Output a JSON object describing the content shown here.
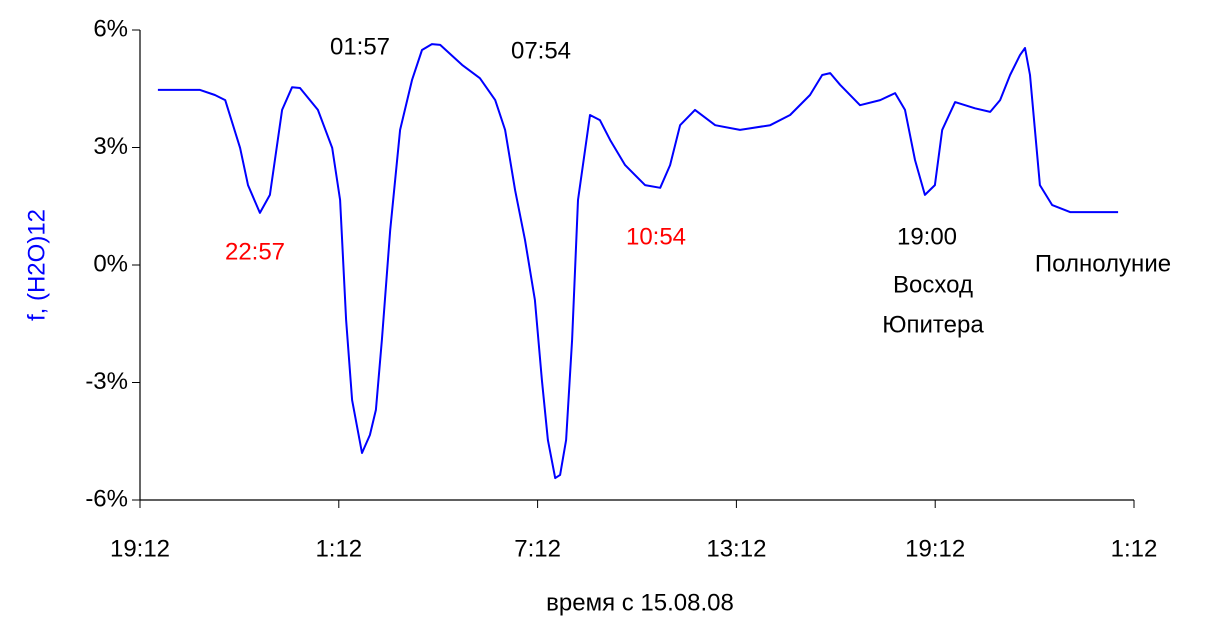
{
  "chart_data": {
    "type": "line",
    "y_label": "f, (H2O)12",
    "x_label": "время с 15.08.08",
    "xlim": [
      0,
      30
    ],
    "xticks": [
      {
        "value": 0,
        "label": "19:12"
      },
      {
        "value": 6,
        "label": "1:12"
      },
      {
        "value": 12,
        "label": "7:12"
      },
      {
        "value": 18,
        "label": "13:12"
      },
      {
        "value": 24,
        "label": "19:12"
      },
      {
        "value": 30,
        "label": "1:12"
      }
    ],
    "ylim": [
      -6,
      6
    ],
    "yticks": [
      {
        "value": 6,
        "label": "6%"
      },
      {
        "value": 3,
        "label": "3%"
      },
      {
        "value": 0,
        "label": "0%"
      },
      {
        "value": -3,
        "label": "-3%"
      },
      {
        "value": -6,
        "label": "-6%"
      }
    ],
    "grid": false,
    "series": [
      {
        "color": "#0000ff",
        "x": [
          0.54,
          1.81,
          2.26,
          2.57,
          3.02,
          3.26,
          3.62,
          3.92,
          4.29,
          4.59,
          4.83,
          5.37,
          5.8,
          6.04,
          6.22,
          6.4,
          6.7,
          6.94,
          7.12,
          7.3,
          7.55,
          7.85,
          8.21,
          8.51,
          8.81,
          9.06,
          9.72,
          10.26,
          10.72,
          11.02,
          11.32,
          11.62,
          11.92,
          12.13,
          12.31,
          12.53,
          12.68,
          12.86,
          13.04,
          13.22,
          13.58,
          13.88,
          14.19,
          14.64,
          15.24,
          15.7,
          16.0,
          16.3,
          16.75,
          17.36,
          18.11,
          19.02,
          19.62,
          20.22,
          20.59,
          20.83,
          21.13,
          21.73,
          22.34,
          22.79,
          23.09,
          23.39,
          23.69,
          23.99,
          24.21,
          24.6,
          25.2,
          25.66,
          25.96,
          26.26,
          26.56,
          26.71,
          26.86,
          27.16,
          27.53,
          28.07,
          28.52,
          29.52
        ],
        "values": [
          4.47,
          4.47,
          4.34,
          4.21,
          2.99,
          2.04,
          1.33,
          1.79,
          3.96,
          4.54,
          4.52,
          3.96,
          2.99,
          1.66,
          -1.4,
          -3.45,
          -4.8,
          -4.34,
          -3.7,
          -1.91,
          0.89,
          3.45,
          4.72,
          5.49,
          5.64,
          5.62,
          5.11,
          4.77,
          4.21,
          3.45,
          1.91,
          0.64,
          -0.89,
          -2.94,
          -4.47,
          -5.44,
          -5.36,
          -4.47,
          -1.91,
          1.66,
          3.83,
          3.7,
          3.19,
          2.55,
          2.04,
          1.97,
          2.55,
          3.57,
          3.96,
          3.57,
          3.45,
          3.57,
          3.83,
          4.34,
          4.85,
          4.9,
          4.6,
          4.08,
          4.21,
          4.39,
          3.96,
          2.68,
          1.79,
          2.04,
          3.45,
          4.16,
          4.0,
          3.91,
          4.21,
          4.85,
          5.36,
          5.54,
          4.85,
          2.04,
          1.53,
          1.35,
          1.35,
          1.35
        ]
      }
    ],
    "annotations": [
      {
        "text": "22:57",
        "color": "#ff0000"
      },
      {
        "text": "01:57",
        "color": "#000000"
      },
      {
        "text": "07:54",
        "color": "#000000"
      },
      {
        "text": "10:54",
        "color": "#ff0000"
      },
      {
        "text": "19:00",
        "color": "#000000"
      },
      {
        "text": "Восход",
        "color": "#000000"
      },
      {
        "text": "Юпитера",
        "color": "#000000"
      },
      {
        "text": "Полнолуние",
        "color": "#000000"
      }
    ]
  }
}
